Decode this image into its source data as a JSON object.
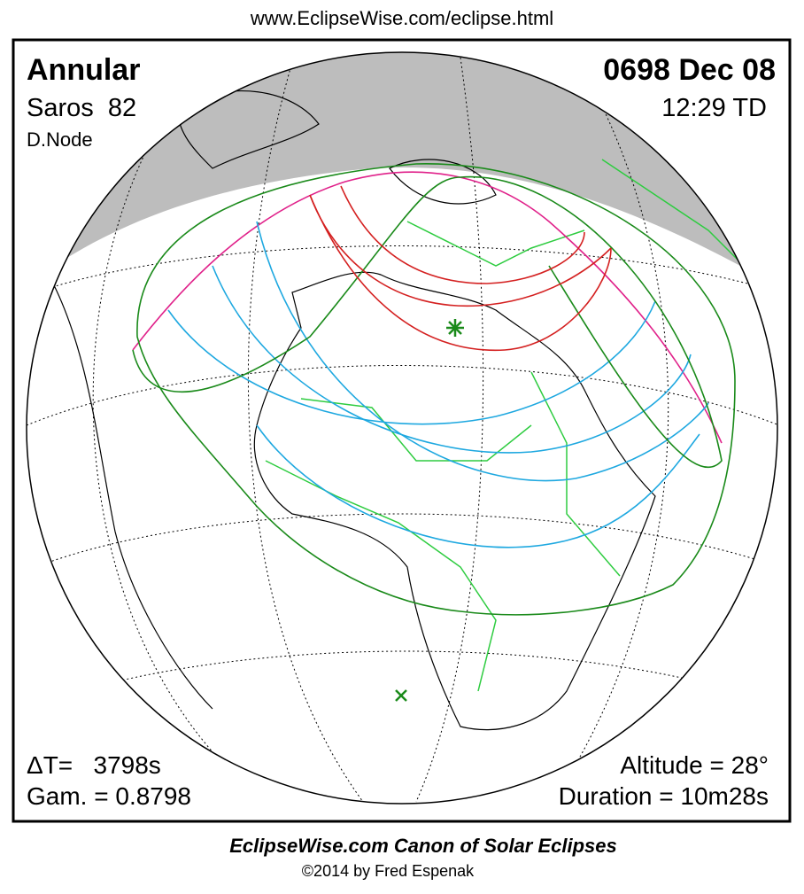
{
  "header": {
    "url": "www.EclipseWise.com/eclipse.html"
  },
  "panel": {
    "type": "Annular",
    "date": "0698 Dec 08",
    "saros": "Saros  82",
    "time": "12:29 TD",
    "node": "D.Node",
    "delta_t": "ΔT=   3798s",
    "gamma": "Gam. = 0.8798",
    "altitude": "Altitude = 28°",
    "duration": "Duration = 10m28s"
  },
  "footer": {
    "title": "EclipseWise.com Canon of Solar Eclipses",
    "copyright": "©2014 by Fred Espenak"
  }
}
